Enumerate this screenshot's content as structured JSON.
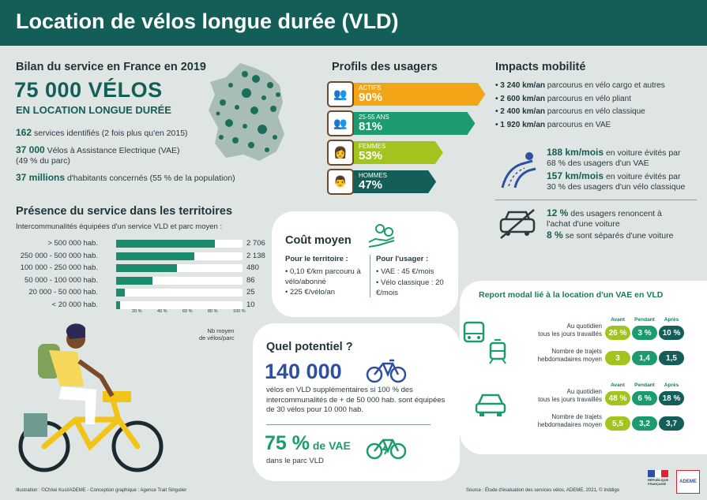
{
  "header": {
    "title": "Location de vélos longue durée (VLD)"
  },
  "bilan": {
    "title": "Bilan du service en France en 2019",
    "big_number": "75 000 VÉLOS",
    "big_sub": "EN LOCATION LONGUE DURÉE",
    "stats": [
      {
        "bold": "162",
        "text": " services identifiés (2 fois plus qu'en 2015)"
      },
      {
        "bold": "37 000",
        "text": " Vélos à Assistance Electrique (VAE)",
        "text2": "(49 % du parc)"
      },
      {
        "bold": "37 millions",
        "text": " d'habitants concernés (55 % de la population)"
      }
    ]
  },
  "profils": {
    "title": "Profils des usagers",
    "items": [
      {
        "label": "ACTIFS",
        "pct": "90%",
        "value": 90,
        "color": "#f2a516",
        "icon": "people-icon"
      },
      {
        "label": "25-55 ANS",
        "pct": "81%",
        "value": 81,
        "color": "#1c9a70",
        "icon": "people-icon"
      },
      {
        "label": "FEMMES",
        "pct": "53%",
        "value": 53,
        "color": "#a3c41f",
        "icon": "woman-icon"
      },
      {
        "label": "HOMMES",
        "pct": "47%",
        "value": 47,
        "color": "#135e57",
        "icon": "man-icon"
      }
    ]
  },
  "impacts": {
    "title": "Impacts mobilité",
    "items": [
      {
        "bold": "3 240 km/an",
        "text": " parcourus en vélo cargo et autres"
      },
      {
        "bold": "2 600 km/an",
        "text": " parcourus en vélo pliant"
      },
      {
        "bold": "2 400 km/an",
        "text": " parcourus en vélo classique"
      },
      {
        "bold": "1 920 km/an",
        "text": " parcourus en VAE"
      }
    ],
    "road": [
      {
        "bold": "188 km/mois",
        "text": " en voiture évités par",
        "text2": "68 % des usagers d'un VAE"
      },
      {
        "bold": "157 km/mois",
        "text": " en voiture évités par",
        "text2": "30 % des usagers d'un vélo classique"
      }
    ],
    "car": [
      {
        "bold": "12 %",
        "text": " des usagers renoncent à",
        "text2": "l'achat d'une voiture"
      },
      {
        "bold": "8 %",
        "text": " se sont séparés d'une voiture"
      }
    ]
  },
  "presence": {
    "title": "Présence du service dans les territoires",
    "subtitle": "Intercommunalités équipées d'un service VLD et parc moyen :",
    "note": "Nb moyen\nde vélos/parc",
    "ticks": [
      "20 %",
      "40 %",
      "60 %",
      "80 %",
      "100 %"
    ]
  },
  "chart_data": {
    "type": "bar",
    "categories": [
      "> 500 000 hab.",
      "250 000 - 500 000 hab.",
      "100 000 - 250 000 hab.",
      "50 000 - 100 000 hab.",
      "20 000 - 50 000 hab.",
      "< 20 000 hab."
    ],
    "values": [
      78,
      62,
      48,
      29,
      7,
      3
    ],
    "bikes": [
      "2 706",
      "2 138",
      "480",
      "86",
      "25",
      "10"
    ],
    "xlim": [
      0,
      100
    ]
  },
  "cout": {
    "title": "Coût moyen",
    "territoire_title": "Pour le territoire :",
    "territoire": [
      "0,10 €/km parcouru à vélo/abonné",
      "225 €/vélo/an"
    ],
    "usager_title": "Pour l'usager :",
    "usager": [
      "VAE : 45 €/mois",
      "Vélo classique : 20 €/mois"
    ]
  },
  "potentiel": {
    "title": "Quel potentiel ?",
    "number": "140 000",
    "text": "vélos en VLD supplémentaires si 100 % des intercommunalités de + de 50 000 hab. sont équipées de 30 vélos pour 10 000 hab.",
    "vae_pct": "75 %",
    "vae_label": " de VAE",
    "vae_sub": "dans le parc VLD"
  },
  "report": {
    "title": "Report modal lié à la location d'un VAE en VLD",
    "cols": [
      "Avant",
      "Pendant",
      "Après"
    ],
    "bus": [
      {
        "label": "Au quotidien\ntous les jours travaillés",
        "vals": [
          "26 %",
          "3 %",
          "10 %"
        ]
      },
      {
        "label": "Nombre de trajets\nhebdomadaires moyen",
        "vals": [
          "3",
          "1,4",
          "1,5"
        ]
      }
    ],
    "car": [
      {
        "label": "Au quotidien\ntous les jours travaillés",
        "vals": [
          "48 %",
          "6 %",
          "18 %"
        ]
      },
      {
        "label": "Nombre de trajets\nhebdomadaires moyen",
        "vals": [
          "5,5",
          "3,2",
          "3,7"
        ]
      }
    ],
    "colors": [
      "#a3c41f",
      "#1c9a70",
      "#135e57"
    ]
  },
  "footer": {
    "credits": "Illustration : ©Chloé Kusi/ADEME - Conception graphique : Agence Trait Singulier",
    "source": "Source : Étude d'évaluation des services vélos, ADEME, 2021, © Inddigo",
    "rf": "RÉPUBLIQUE\nFRANÇAISE",
    "ademe": "ADEME"
  }
}
